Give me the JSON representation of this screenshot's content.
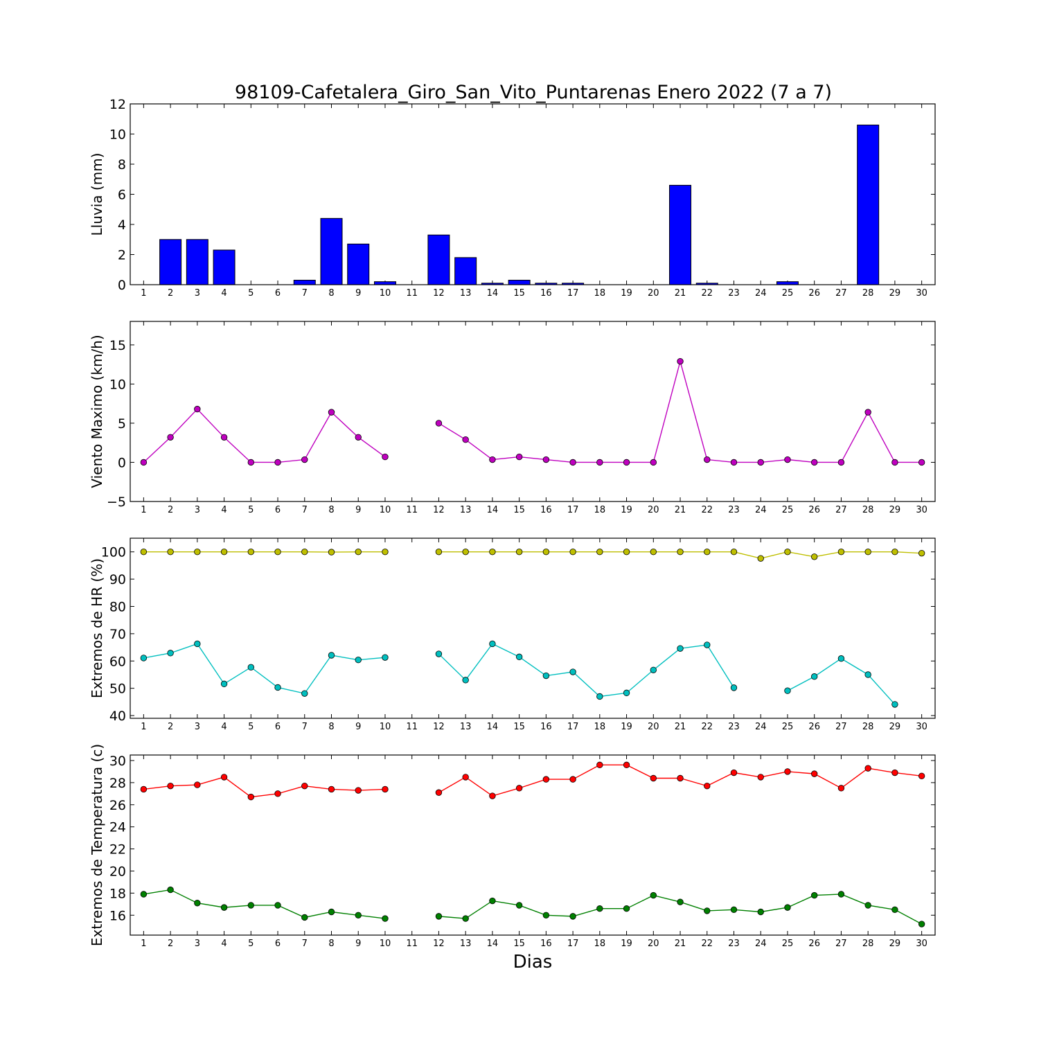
{
  "title": "98109-Cafetalera_Giro_San_Vito_Puntarenas Enero 2022  (7 a 7)",
  "xlabel": "Dias",
  "days": [
    1,
    2,
    3,
    4,
    5,
    6,
    7,
    8,
    9,
    10,
    11,
    12,
    13,
    14,
    15,
    16,
    17,
    18,
    19,
    20,
    21,
    22,
    23,
    24,
    25,
    26,
    27,
    28,
    29,
    30
  ],
  "chart_data": [
    {
      "type": "bar",
      "ylabel": "Lluvia (mm)",
      "ylim": [
        0,
        12
      ],
      "yticks": [
        0,
        2,
        4,
        6,
        8,
        10,
        12
      ],
      "x": [
        1,
        2,
        3,
        4,
        5,
        6,
        7,
        8,
        9,
        10,
        11,
        12,
        13,
        14,
        15,
        16,
        17,
        18,
        19,
        20,
        21,
        22,
        23,
        24,
        25,
        26,
        27,
        28,
        29,
        30
      ],
      "series": [
        {
          "color": "#0000ff",
          "values": [
            0,
            3.0,
            3.0,
            2.3,
            0,
            0,
            0.3,
            4.4,
            2.7,
            0.2,
            null,
            3.3,
            1.8,
            0.1,
            0.3,
            0.1,
            0.1,
            0,
            0,
            0,
            6.6,
            0.1,
            0,
            0,
            0.2,
            0,
            0,
            10.6,
            0,
            0
          ]
        }
      ]
    },
    {
      "type": "line",
      "ylabel": "Viento Maximo (km/h)",
      "ylim": [
        -5,
        18
      ],
      "yticks": [
        -5,
        0,
        5,
        10,
        15
      ],
      "x": [
        1,
        2,
        3,
        4,
        5,
        6,
        7,
        8,
        9,
        10,
        11,
        12,
        13,
        14,
        15,
        16,
        17,
        18,
        19,
        20,
        21,
        22,
        23,
        24,
        25,
        26,
        27,
        28,
        29,
        30
      ],
      "series": [
        {
          "color": "#bf00bf",
          "values": [
            0,
            3.2,
            6.8,
            3.2,
            0,
            0,
            0.35,
            6.4,
            3.2,
            0.7,
            null,
            5.0,
            2.9,
            0.35,
            0.7,
            0.35,
            0,
            0,
            0,
            0,
            12.9,
            0.35,
            0,
            0,
            0.35,
            0,
            0,
            6.4,
            0,
            0
          ]
        }
      ]
    },
    {
      "type": "line",
      "ylabel": "Extremos de HR (%)",
      "ylim": [
        39,
        105
      ],
      "yticks": [
        40,
        50,
        60,
        70,
        80,
        90,
        100
      ],
      "x": [
        1,
        2,
        3,
        4,
        5,
        6,
        7,
        8,
        9,
        10,
        11,
        12,
        13,
        14,
        15,
        16,
        17,
        18,
        19,
        20,
        21,
        22,
        23,
        24,
        25,
        26,
        27,
        28,
        29,
        30
      ],
      "series": [
        {
          "color": "#bfbf00",
          "values": [
            100,
            100,
            100,
            100,
            100,
            100,
            100,
            99.9,
            100,
            100,
            null,
            100,
            100,
            100,
            100,
            100,
            100,
            100,
            100,
            100,
            100,
            100,
            100,
            97.6,
            100,
            98.2,
            100,
            100,
            100,
            99.5
          ]
        },
        {
          "color": "#00bfbf",
          "values": [
            61.1,
            62.9,
            66.3,
            51.6,
            57.7,
            50.3,
            48.1,
            62.1,
            60.4,
            61.3,
            null,
            62.6,
            53.0,
            66.3,
            61.5,
            54.6,
            56.0,
            47.0,
            48.3,
            56.7,
            64.6,
            65.9,
            50.2,
            null,
            49.1,
            54.3,
            60.9,
            55.0,
            44.1,
            null
          ]
        }
      ]
    },
    {
      "type": "line",
      "ylabel": "Extremos de Temperatura (c)",
      "ylim": [
        14.2,
        30.5
      ],
      "yticks": [
        16,
        18,
        20,
        22,
        24,
        26,
        28,
        30
      ],
      "x": [
        1,
        2,
        3,
        4,
        5,
        6,
        7,
        8,
        9,
        10,
        11,
        12,
        13,
        14,
        15,
        16,
        17,
        18,
        19,
        20,
        21,
        22,
        23,
        24,
        25,
        26,
        27,
        28,
        29,
        30
      ],
      "series": [
        {
          "color": "#ff0000",
          "values": [
            27.4,
            27.7,
            27.8,
            28.5,
            26.7,
            27.0,
            27.7,
            27.4,
            27.3,
            27.4,
            null,
            27.1,
            28.5,
            26.8,
            27.5,
            28.3,
            28.3,
            29.6,
            29.6,
            28.4,
            28.4,
            27.7,
            28.9,
            28.5,
            29.0,
            28.8,
            27.5,
            29.3,
            28.9,
            28.6
          ]
        },
        {
          "color": "#008000",
          "values": [
            17.9,
            18.3,
            17.1,
            16.7,
            16.9,
            16.9,
            15.8,
            16.3,
            16.0,
            15.7,
            null,
            15.9,
            15.7,
            17.3,
            16.9,
            16.0,
            15.9,
            16.6,
            16.6,
            17.8,
            17.2,
            16.4,
            16.5,
            16.3,
            16.7,
            17.8,
            17.9,
            16.9,
            16.5,
            15.2
          ]
        }
      ]
    }
  ]
}
